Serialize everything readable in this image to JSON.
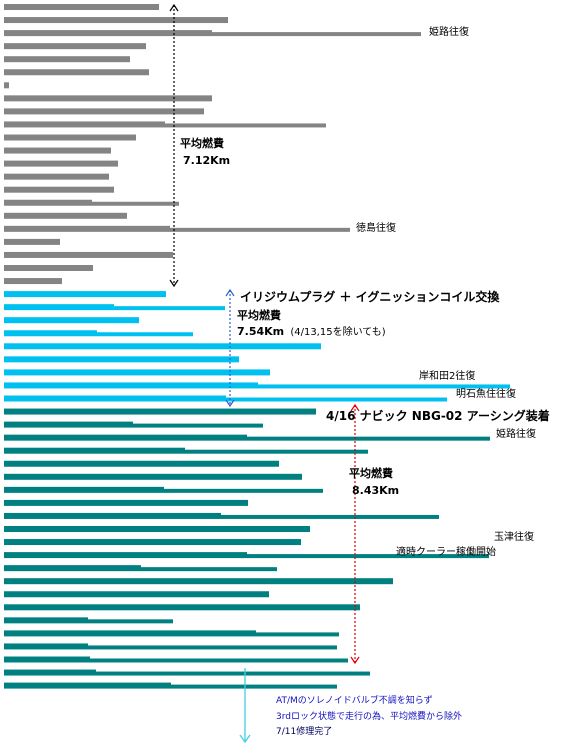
{
  "chart_data": {
    "type": "bar",
    "orientation": "horizontal",
    "colors": {
      "phase1": "#848484",
      "phase2": "#00c0f0",
      "phase3": "#008080",
      "arrow1": "#000000",
      "arrow2": "#3060d0",
      "arrow3": "#e00000",
      "arrow4": "#40d0e0"
    },
    "phases": [
      {
        "id": "phase1",
        "color": "#848484",
        "avg_title": "平均燃費",
        "avg_value": "7.12Km",
        "bars": [
          {
            "v1": 159,
            "v2": 159
          },
          {
            "v1": 228,
            "v2": 228
          },
          {
            "v1": 212,
            "v2": 421,
            "note": "姫路往復"
          },
          {
            "v1": 146,
            "v2": 146
          },
          {
            "v1": 130,
            "v2": 130
          },
          {
            "v1": 149,
            "v2": 149
          },
          {
            "v1": 9,
            "v2": 9
          },
          {
            "v1": 212,
            "v2": 212
          },
          {
            "v1": 204,
            "v2": 204
          },
          {
            "v1": 165,
            "v2": 326
          },
          {
            "v1": 136,
            "v2": 136
          },
          {
            "v1": 111,
            "v2": 111
          },
          {
            "v1": 118,
            "v2": 118
          },
          {
            "v1": 109,
            "v2": 109
          },
          {
            "v1": 114,
            "v2": 114
          },
          {
            "v1": 92,
            "v2": 179
          },
          {
            "v1": 127,
            "v2": 127
          },
          {
            "v1": 170,
            "v2": 350,
            "note": "徳島往復"
          },
          {
            "v1": 60,
            "v2": 60
          },
          {
            "v1": 173,
            "v2": 173
          },
          {
            "v1": 93,
            "v2": 93
          },
          {
            "v1": 62,
            "v2": 62
          }
        ]
      },
      {
        "id": "phase2",
        "color": "#00c0f0",
        "event": "イリジウムプラグ ＋ イグニッションコイル交換",
        "avg_title": "平均燃費",
        "avg_value": "7.54Km",
        "avg_note": "(4/13,15を除いても)",
        "bars": [
          {
            "v1": 166,
            "v2": 166
          },
          {
            "v1": 114,
            "v2": 225
          },
          {
            "v1": 139,
            "v2": 139
          },
          {
            "v1": 97,
            "v2": 193
          },
          {
            "v1": 321,
            "v2": 321
          },
          {
            "v1": 239,
            "v2": 239
          },
          {
            "v1": 270,
            "v2": 270
          },
          {
            "v1": 258,
            "v2": 510,
            "note": "岸和田2往復"
          },
          {
            "v1": 226,
            "v2": 447,
            "note": "明石魚住往復"
          }
        ]
      },
      {
        "id": "phase3",
        "color": "#008080",
        "event": "4/16 ナビック NBG-02 アーシング装着",
        "avg_title": "平均燃費",
        "avg_value": "8.43Km",
        "bars": [
          {
            "v1": 316,
            "v2": 316
          },
          {
            "v1": 133,
            "v2": 263
          },
          {
            "v1": 247,
            "v2": 490,
            "note": "姫路往復"
          },
          {
            "v1": 185,
            "v2": 368
          },
          {
            "v1": 279,
            "v2": 279
          },
          {
            "v1": 302,
            "v2": 302
          },
          {
            "v1": 164,
            "v2": 323
          },
          {
            "v1": 248,
            "v2": 248
          },
          {
            "v1": 221,
            "v2": 439
          },
          {
            "v1": 310,
            "v2": 310
          },
          {
            "v1": 301,
            "v2": 301
          },
          {
            "v1": 247,
            "v2": 489,
            "note": "玉津往復"
          },
          {
            "v1": 141,
            "v2": 277,
            "note": "適時クーラー稼働開始"
          },
          {
            "v1": 393,
            "v2": 393
          },
          {
            "v1": 269,
            "v2": 269
          },
          {
            "v1": 360,
            "v2": 360
          },
          {
            "v1": 88,
            "v2": 173
          },
          {
            "v1": 256,
            "v2": 339
          },
          {
            "v1": 88,
            "v2": 337
          },
          {
            "v1": 90,
            "v2": 348
          },
          {
            "v1": 96,
            "v2": 370
          },
          {
            "v1": 171,
            "v2": 337
          }
        ]
      }
    ],
    "footnote": [
      "AT/Mのソレノイドバルブ不調を知らず",
      "3rdロック状態で走行の為、平均燃費から除外",
      "7/11修理完了"
    ]
  }
}
